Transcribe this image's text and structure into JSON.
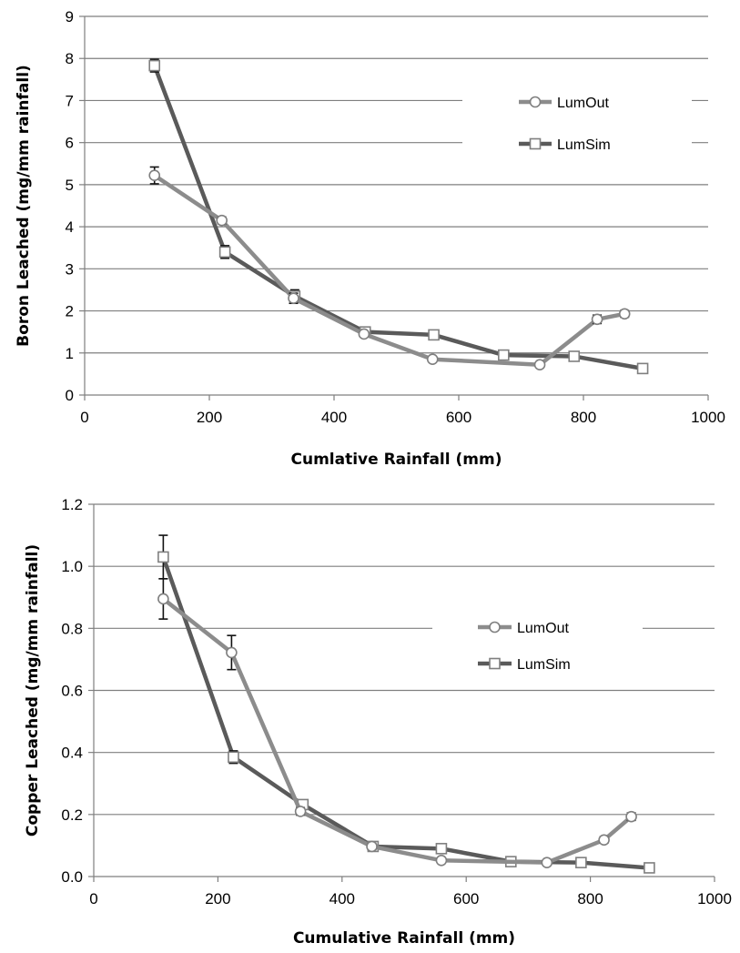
{
  "chart_data": [
    {
      "type": "line",
      "title": "",
      "xlabel": "Cumlative Rainfall (mm)",
      "ylabel": "Boron Leached (mg/mm rainfall)",
      "xlim": [
        0,
        1000
      ],
      "ylim": [
        0,
        9
      ],
      "x_ticks": [
        "0",
        "200",
        "400",
        "600",
        "800",
        "1000"
      ],
      "y_ticks": [
        "0",
        "1",
        "2",
        "3",
        "4",
        "5",
        "6",
        "7",
        "8",
        "9"
      ],
      "grid": "horizontal",
      "legend": "right",
      "series": [
        {
          "name": "LumOut",
          "marker": "circle",
          "color": "#8c8c8c",
          "x": [
            112,
            220,
            335,
            448,
            558,
            730,
            822,
            866
          ],
          "y": [
            5.22,
            4.15,
            2.3,
            1.45,
            0.85,
            0.72,
            1.8,
            1.93
          ],
          "err": [
            0.2,
            0.08,
            0.12,
            0.06,
            0.05,
            0.05,
            0.1,
            0.08
          ]
        },
        {
          "name": "LumSim",
          "marker": "square",
          "color": "#5a5a5a",
          "x": [
            112,
            225,
            337,
            450,
            560,
            672,
            785,
            895
          ],
          "y": [
            7.83,
            3.4,
            2.35,
            1.5,
            1.43,
            0.95,
            0.92,
            0.63
          ],
          "err": [
            0.15,
            0.15,
            0.15,
            0.08,
            0.06,
            0.08,
            0.1,
            0.05
          ]
        }
      ]
    },
    {
      "type": "line",
      "title": "",
      "xlabel": "Cumulative Rainfall (mm)",
      "ylabel": "Copper Leached (mg/mm rainfall)",
      "xlim": [
        0,
        1000
      ],
      "ylim": [
        0,
        1.2
      ],
      "x_ticks": [
        "0",
        "200",
        "400",
        "600",
        "800",
        "1000"
      ],
      "y_ticks": [
        "0.0",
        "0.2",
        "0.4",
        "0.6",
        "0.8",
        "1.0",
        "1.2"
      ],
      "grid": "horizontal",
      "legend": "right",
      "series": [
        {
          "name": "LumOut",
          "marker": "circle",
          "color": "#8c8c8c",
          "x": [
            112,
            222,
            333,
            448,
            560,
            730,
            822,
            866
          ],
          "y": [
            0.895,
            0.722,
            0.21,
            0.097,
            0.052,
            0.045,
            0.118,
            0.193
          ],
          "err": [
            0.065,
            0.055,
            0.012,
            0.01,
            0.006,
            0.005,
            0.01,
            0.012
          ]
        },
        {
          "name": "LumSim",
          "marker": "square",
          "color": "#5a5a5a",
          "x": [
            112,
            225,
            337,
            450,
            560,
            672,
            785,
            895
          ],
          "y": [
            1.03,
            0.385,
            0.232,
            0.097,
            0.09,
            0.048,
            0.045,
            0.028
          ],
          "err": [
            0.07,
            0.02,
            0.015,
            0.008,
            0.006,
            0.005,
            0.004,
            0.004
          ]
        }
      ]
    }
  ]
}
